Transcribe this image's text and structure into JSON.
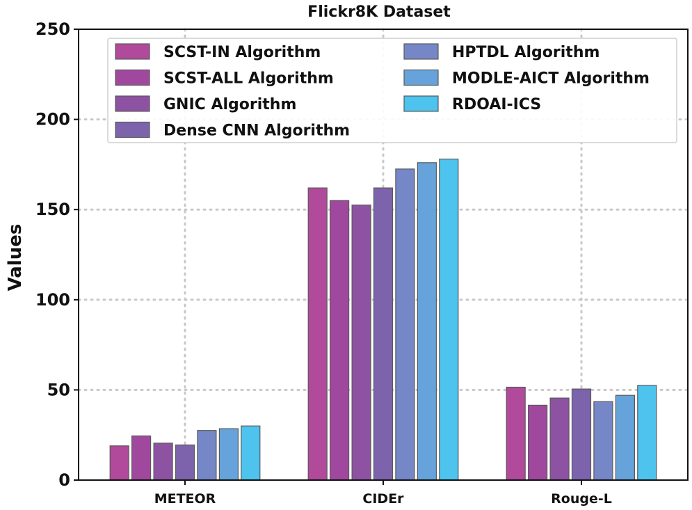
{
  "chart_data": {
    "type": "bar",
    "title": "Flickr8K Dataset",
    "xlabel": "",
    "ylabel": "Values",
    "ylim": [
      0,
      250
    ],
    "yticks": [
      "0",
      "50",
      "100",
      "150",
      "200",
      "250"
    ],
    "grid": true,
    "legend_position": "top",
    "categories": [
      "METEOR",
      "CIDEr",
      "Rouge-L"
    ],
    "series": [
      {
        "name": "SCST-IN Algorithm",
        "color": "#b14a9b",
        "values": [
          19,
          162,
          51.5
        ]
      },
      {
        "name": "SCST-ALL Algorithm",
        "color": "#a0489e",
        "values": [
          24.5,
          155,
          41.5
        ]
      },
      {
        "name": "GNIC Algorithm",
        "color": "#8e52a2",
        "values": [
          20.5,
          152.5,
          45.5
        ]
      },
      {
        "name": "Dense CNN Algorithm",
        "color": "#7c63ab",
        "values": [
          19.5,
          162,
          50.5
        ]
      },
      {
        "name": "HPTDL Algorithm",
        "color": "#7687c7",
        "values": [
          27.5,
          172.5,
          43.5
        ]
      },
      {
        "name": "MODLE-AICT Algorithm",
        "color": "#65a3da",
        "values": [
          28.5,
          176,
          47
        ]
      },
      {
        "name": "RDOAI-ICS",
        "color": "#4dc3ee",
        "values": [
          30,
          178,
          52.5
        ]
      }
    ]
  }
}
